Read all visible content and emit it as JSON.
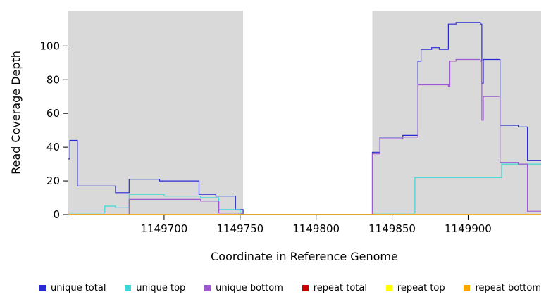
{
  "chart_data": {
    "type": "line",
    "subtype": "step",
    "title": "",
    "xlabel": "Coordinate in Reference Genome",
    "ylabel": "Read Coverage Depth",
    "xlim": [
      1149637,
      1149948
    ],
    "ylim": [
      0,
      121
    ],
    "x_ticks": [
      1149700,
      1149750,
      1149800,
      1149850,
      1149900
    ],
    "y_ticks": [
      0,
      20,
      40,
      60,
      80,
      100
    ],
    "grid": false,
    "legend_position": "bottom",
    "band_color": "#d9d9d9",
    "background_bands": [
      {
        "x_start": 1149637,
        "x_end": 1149752
      },
      {
        "x_start": 1149837,
        "x_end": 1149948
      }
    ],
    "series": [
      {
        "name": "unique total",
        "color": "#2a2ad2",
        "step_points": [
          [
            1149637,
            33
          ],
          [
            1149638,
            44
          ],
          [
            1149643,
            17
          ],
          [
            1149668,
            13
          ],
          [
            1149677,
            21
          ],
          [
            1149697,
            20
          ],
          [
            1149723,
            12
          ],
          [
            1149734,
            11
          ],
          [
            1149747,
            3
          ],
          [
            1149752,
            0
          ],
          [
            1149837,
            37
          ],
          [
            1149842,
            46
          ],
          [
            1149857,
            47
          ],
          [
            1149867,
            91
          ],
          [
            1149869,
            98
          ],
          [
            1149876,
            99
          ],
          [
            1149881,
            98
          ],
          [
            1149887,
            113
          ],
          [
            1149892,
            114
          ],
          [
            1149908,
            113
          ],
          [
            1149909,
            78
          ],
          [
            1149910,
            92
          ],
          [
            1149921,
            53
          ],
          [
            1149933,
            52
          ],
          [
            1149939,
            32
          ]
        ]
      },
      {
        "name": "unique top",
        "color": "#3cd8d8",
        "step_points": [
          [
            1149637,
            1
          ],
          [
            1149661,
            5
          ],
          [
            1149668,
            4
          ],
          [
            1149677,
            12
          ],
          [
            1149700,
            11
          ],
          [
            1149724,
            10
          ],
          [
            1149736,
            3
          ],
          [
            1149750,
            0
          ],
          [
            1149837,
            1
          ],
          [
            1149865,
            22
          ],
          [
            1149922,
            30
          ]
        ]
      },
      {
        "name": "unique bottom",
        "color": "#9c59d1",
        "step_points": [
          [
            1149637,
            0
          ],
          [
            1149677,
            9
          ],
          [
            1149724,
            8
          ],
          [
            1149736,
            1
          ],
          [
            1149751,
            0
          ],
          [
            1149837,
            36
          ],
          [
            1149842,
            45
          ],
          [
            1149857,
            46
          ],
          [
            1149867,
            77
          ],
          [
            1149887,
            76
          ],
          [
            1149888,
            91
          ],
          [
            1149892,
            92
          ],
          [
            1149908,
            91
          ],
          [
            1149909,
            56
          ],
          [
            1149910,
            70
          ],
          [
            1149921,
            31
          ],
          [
            1149933,
            30
          ],
          [
            1149939,
            2
          ]
        ]
      },
      {
        "name": "repeat total",
        "color": "#cc0000",
        "step_points": [
          [
            1149637,
            0
          ]
        ]
      },
      {
        "name": "repeat top",
        "color": "#ffff00",
        "step_points": [
          [
            1149637,
            0
          ]
        ]
      },
      {
        "name": "repeat bottom",
        "color": "#ffa500",
        "step_points": [
          [
            1149637,
            0
          ]
        ]
      }
    ]
  }
}
